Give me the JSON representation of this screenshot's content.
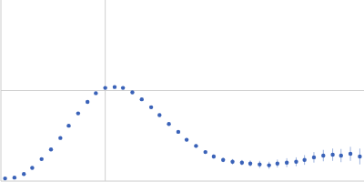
{
  "chart_data": {
    "type": "scatter",
    "color": "#3a62b8",
    "marker": "circle",
    "grid": true,
    "tick_labels": false,
    "xlim": [
      0,
      3.48
    ],
    "xticks": [
      1
    ],
    "ylim": [
      -0.03,
      2.03
    ],
    "yticks": [
      1
    ],
    "x": [
      0.04,
      0.13,
      0.22,
      0.3,
      0.39,
      0.48,
      0.57,
      0.65,
      0.74,
      0.83,
      0.91,
      1.0,
      1.09,
      1.17,
      1.26,
      1.35,
      1.44,
      1.52,
      1.61,
      1.7,
      1.78,
      1.87,
      1.96,
      2.04,
      2.13,
      2.22,
      2.31,
      2.39,
      2.48,
      2.57,
      2.65,
      2.74,
      2.83,
      2.91,
      3.0,
      3.09,
      3.18,
      3.26,
      3.35,
      3.44
    ],
    "values": [
      0.0,
      0.01,
      0.05,
      0.12,
      0.22,
      0.33,
      0.46,
      0.6,
      0.74,
      0.87,
      0.97,
      1.03,
      1.04,
      1.03,
      0.98,
      0.9,
      0.81,
      0.72,
      0.62,
      0.53,
      0.44,
      0.37,
      0.3,
      0.25,
      0.21,
      0.19,
      0.18,
      0.17,
      0.16,
      0.15,
      0.17,
      0.18,
      0.19,
      0.21,
      0.24,
      0.26,
      0.27,
      0.26,
      0.28,
      0.25
    ],
    "errors": [
      0.005,
      0.005,
      0.005,
      0.005,
      0.005,
      0.005,
      0.005,
      0.005,
      0.01,
      0.01,
      0.01,
      0.01,
      0.01,
      0.01,
      0.01,
      0.01,
      0.01,
      0.015,
      0.015,
      0.015,
      0.02,
      0.02,
      0.02,
      0.025,
      0.025,
      0.03,
      0.03,
      0.035,
      0.04,
      0.04,
      0.045,
      0.05,
      0.05,
      0.055,
      0.06,
      0.065,
      0.07,
      0.075,
      0.08,
      0.09
    ]
  }
}
